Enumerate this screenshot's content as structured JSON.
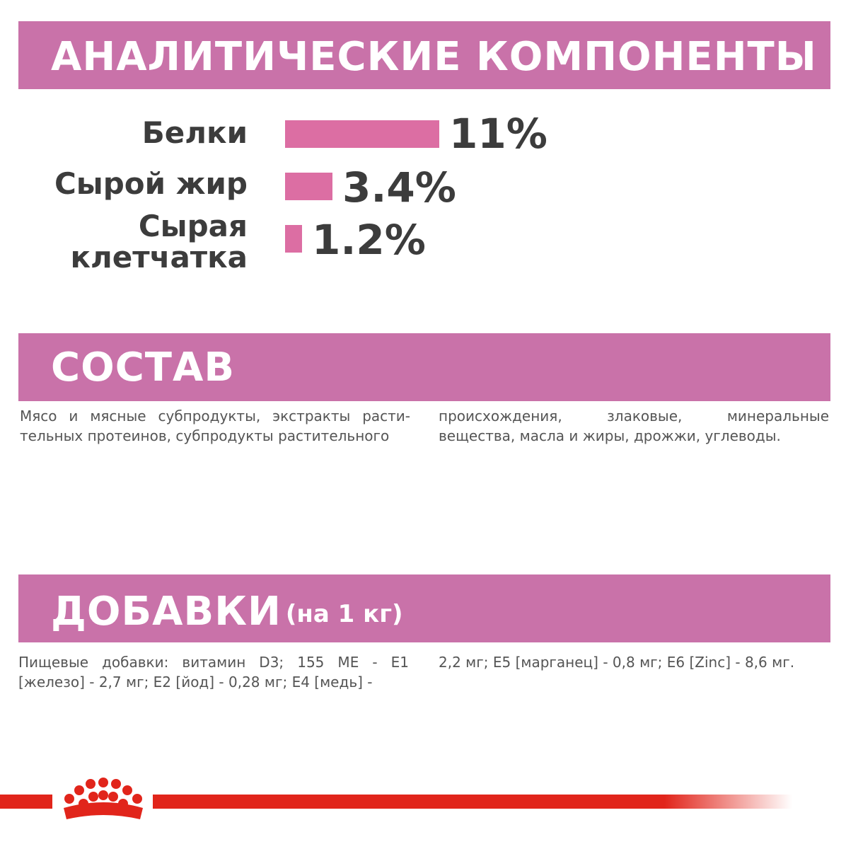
{
  "analytic": {
    "title": "АНАЛИТИЧЕСКИЕ КОМПОНЕНТЫ",
    "items": [
      {
        "label": "Белки",
        "value_text": "11%",
        "value": 11
      },
      {
        "label": "Сырой жир",
        "value_text": "3.4%",
        "value": 3.4
      },
      {
        "label_line1": "Сырая",
        "label_line2": "клетчатка",
        "value_text": "1.2%",
        "value": 1.2
      }
    ],
    "bar_color": "#dc6ea3"
  },
  "composition": {
    "title": "СОСТАВ",
    "text_col1": "Мясо и мясные субпродукты, экстракты расти-тельных протеинов, субпродукты растительного",
    "text_col2": "происхождения, злаковые, минеральные вещества, масла и жиры, дрожжи, углеводы."
  },
  "additives": {
    "title": "ДОБАВКИ",
    "title_sub": "(на 1 кг)",
    "text_col1": "Пищевые добавки: витамин D3; 155 МЕ - E1 [железо] - 2,7 мг; E2 [йод] - 0,28 мг; E4 [медь] -",
    "text_col2": "2,2 мг; E5 [марганец] - 0,8 мг; E6 [Zinc] - 8,6 мг."
  },
  "colors": {
    "band": "#c972a9",
    "brand_red": "#e1251b"
  },
  "logo": {
    "icon": "royal-canin-crown-icon"
  }
}
